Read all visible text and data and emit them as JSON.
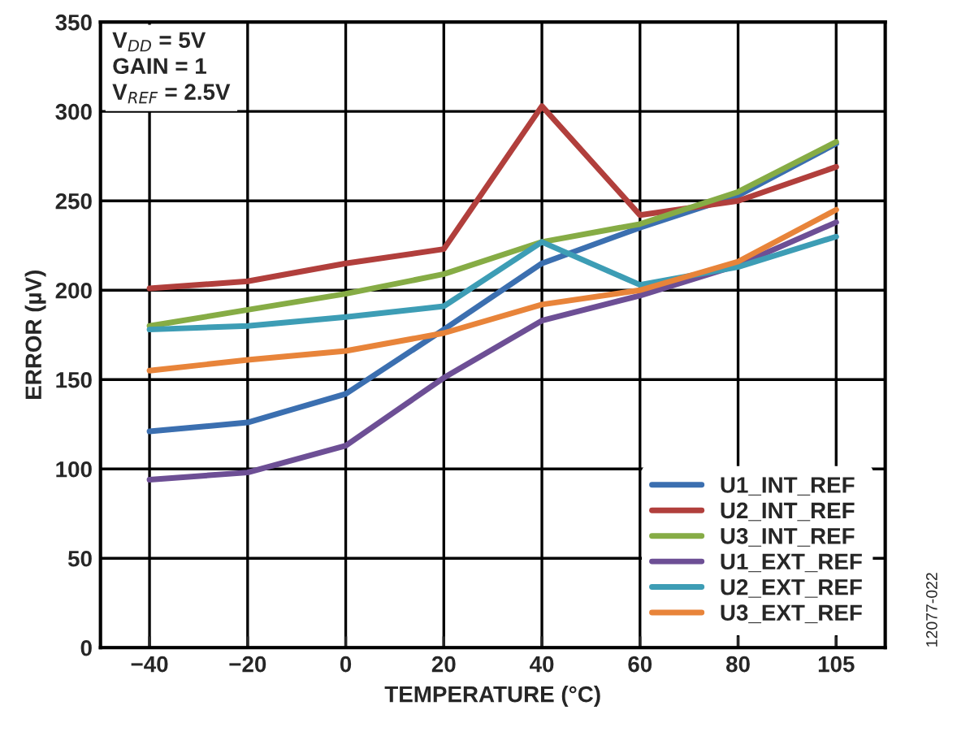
{
  "chart_data": {
    "type": "line",
    "xlabel": "TEMPERATURE (°C)",
    "ylabel": "ERROR (µV)",
    "categories": [
      "−40",
      "−20",
      "0",
      "20",
      "40",
      "60",
      "80",
      "105"
    ],
    "series": [
      {
        "name": "U1_INT_REF",
        "color": "#3b6fb0",
        "values": [
          121,
          126,
          142,
          178,
          215,
          235,
          253,
          282
        ]
      },
      {
        "name": "U2_INT_REF",
        "color": "#b13f3c",
        "values": [
          201,
          205,
          215,
          223,
          303,
          242,
          250,
          269
        ]
      },
      {
        "name": "U3_INT_REF",
        "color": "#86ac45",
        "values": [
          180,
          189,
          198,
          209,
          227,
          237,
          255,
          283
        ]
      },
      {
        "name": "U1_EXT_REF",
        "color": "#6d4f95",
        "values": [
          94,
          98,
          113,
          151,
          183,
          197,
          214,
          238
        ]
      },
      {
        "name": "U2_EXT_REF",
        "color": "#3d9db5",
        "values": [
          178,
          180,
          185,
          191,
          227,
          203,
          213,
          230
        ]
      },
      {
        "name": "U3_EXT_REF",
        "color": "#e8843a",
        "values": [
          155,
          161,
          166,
          176,
          192,
          200,
          216,
          245
        ]
      }
    ],
    "ylim": [
      0,
      350
    ],
    "yticks": [
      0,
      50,
      100,
      150,
      200,
      250,
      300,
      350
    ],
    "grid": true,
    "legend": "bottom right",
    "marker": "none",
    "line_style": "solid",
    "annotations": [
      "V$_{DD}$ = 5V\nGAIN = 1\nV$_{REF}$ = 2.5V",
      "12077-022"
    ]
  }
}
